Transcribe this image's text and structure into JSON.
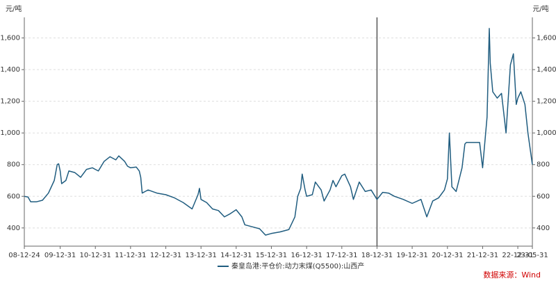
{
  "chart_data": {
    "type": "line",
    "ylabel": "元/吨",
    "source": "数据来源：Wind",
    "xlim": [
      "08-12-24",
      "23-05-31"
    ],
    "xticks": [
      "08-12-24",
      "09-12-31",
      "10-12-31",
      "11-12-31",
      "12-12-31",
      "13-12-31",
      "14-12-31",
      "15-12-31",
      "16-12-31",
      "17-12-31",
      "18-12-31",
      "19-12-31",
      "20-12-31",
      "21-12-31",
      "22-12-31",
      "23-05-31"
    ],
    "ylim": [
      285,
      1730
    ],
    "yticks": [
      400,
      600,
      800,
      {
        "value": 1000,
        "label": "1,000"
      },
      {
        "value": 1200,
        "label": "1,200"
      },
      {
        "value": 1400,
        "label": "1,400"
      },
      {
        "value": 1600,
        "label": "1,600"
      }
    ],
    "grid": true,
    "vline": "18-12-31",
    "x": [
      "08-12-24",
      "09-01-31",
      "09-02-28",
      "09-04-30",
      "09-06-30",
      "09-08-31",
      "09-10-31",
      "09-11-30",
      "09-12-15",
      "09-12-31",
      "10-01-15",
      "10-02-28",
      "10-03-31",
      "10-05-31",
      "10-07-31",
      "10-09-30",
      "10-11-30",
      "10-12-31",
      "11-01-31",
      "11-03-31",
      "11-05-31",
      "11-07-31",
      "11-08-31",
      "11-10-31",
      "11-11-30",
      "11-12-31",
      "12-02-28",
      "12-03-31",
      "12-04-15",
      "12-04-30",
      "12-05-31",
      "12-06-30",
      "12-09-30",
      "12-12-31",
      "13-03-31",
      "13-06-30",
      "13-09-30",
      "13-11-30",
      "13-12-15",
      "13-12-31",
      "14-02-28",
      "14-04-30",
      "14-06-30",
      "14-08-31",
      "14-10-31",
      "14-12-31",
      "15-02-28",
      "15-03-31",
      "15-06-30",
      "15-08-31",
      "15-10-31",
      "15-12-31",
      "16-03-31",
      "16-06-30",
      "16-08-31",
      "16-09-30",
      "16-10-31",
      "16-11-15",
      "16-12-15",
      "16-12-31",
      "17-02-28",
      "17-03-31",
      "17-05-31",
      "17-06-30",
      "17-08-31",
      "17-09-30",
      "17-10-31",
      "17-12-31",
      "18-01-31",
      "18-03-31",
      "18-04-30",
      "18-06-30",
      "18-08-31",
      "18-10-31",
      "18-12-31",
      "19-02-28",
      "19-04-30",
      "19-06-30",
      "19-09-30",
      "19-12-31",
      "20-03-31",
      "20-05-31",
      "20-07-31",
      "20-09-30",
      "20-11-30",
      "20-12-31",
      "21-01-20",
      "21-02-15",
      "21-03-31",
      "21-05-31",
      "21-06-30",
      "21-07-15",
      "21-09-30",
      "21-11-30",
      "21-12-31",
      "22-02-15",
      "22-03-10",
      "22-03-20",
      "22-04-15",
      "22-05-31",
      "22-07-15",
      "22-08-31",
      "22-10-15",
      "22-11-15",
      "22-12-15",
      "22-12-31",
      "23-01-31",
      "23-03-15",
      "23-04-15",
      "23-05-31"
    ],
    "series": [
      {
        "name": "秦皇岛港:平仓价:动力末煤(Q5500):山西产",
        "color": "#1f5c7f",
        "values": [
          600,
          595,
          565,
          565,
          575,
          620,
          700,
          800,
          805,
          760,
          680,
          700,
          760,
          750,
          720,
          770,
          780,
          770,
          760,
          820,
          850,
          830,
          855,
          820,
          790,
          780,
          785,
          760,
          720,
          620,
          630,
          640,
          620,
          610,
          590,
          560,
          520,
          610,
          650,
          580,
          560,
          520,
          510,
          470,
          490,
          515,
          470,
          420,
          405,
          395,
          355,
          365,
          375,
          390,
          470,
          600,
          650,
          740,
          640,
          600,
          610,
          690,
          640,
          570,
          640,
          700,
          660,
          730,
          740,
          660,
          580,
          690,
          630,
          640,
          580,
          625,
          620,
          600,
          580,
          555,
          580,
          470,
          570,
          590,
          640,
          710,
          1000,
          660,
          630,
          780,
          930,
          940,
          940,
          940,
          780,
          1100,
          1660,
          1440,
          1260,
          1220,
          1250,
          1000,
          1430,
          1500,
          1180,
          1220,
          1260,
          1180,
          1000,
          800
        ]
      }
    ]
  }
}
